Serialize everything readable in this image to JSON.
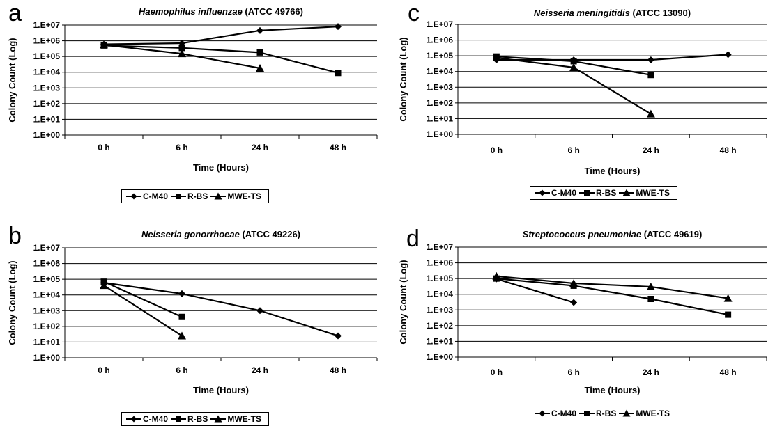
{
  "panels": [
    {
      "letter": "a"
    },
    {
      "letter": "b"
    },
    {
      "letter": "c"
    },
    {
      "letter": "d"
    }
  ],
  "chart_data": [
    {
      "type": "line",
      "title_italic": "Haemophilus influenzae",
      "title_rest": " (ATCC 49766)",
      "xlabel": "Time (Hours)",
      "ylabel": "Colony Count (Log)",
      "categories": [
        "0 h",
        "6 h",
        "24 h",
        "48 h"
      ],
      "y_scale": "log",
      "ylim": [
        1,
        10000000
      ],
      "yticks": [
        "1.E+00",
        "1.E+01",
        "1.E+02",
        "1.E+03",
        "1.E+04",
        "1.E+05",
        "1.E+06",
        "1.E+07"
      ],
      "grid": true,
      "legend_position": "bottom",
      "series": [
        {
          "name": "C-M40",
          "marker": "diamond",
          "values": [
            600000,
            700000,
            4500000,
            8000000
          ]
        },
        {
          "name": "R-BS",
          "marker": "square",
          "values": [
            500000,
            350000,
            180000,
            9000
          ]
        },
        {
          "name": "MWE-TS",
          "marker": "triangle",
          "values": [
            550000,
            150000,
            18000,
            null
          ]
        }
      ]
    },
    {
      "type": "line",
      "title_italic": "Neisseria gonorrhoeae",
      "title_rest": " (ATCC 49226)",
      "xlabel": "Time (Hours)",
      "ylabel": "Colony Count (Log)",
      "categories": [
        "0 h",
        "6 h",
        "24 h",
        "48 h"
      ],
      "y_scale": "log",
      "ylim": [
        1,
        10000000
      ],
      "yticks": [
        "1.E+00",
        "1.E+01",
        "1.E+02",
        "1.E+03",
        "1.E+04",
        "1.E+05",
        "1.E+06",
        "1.E+07"
      ],
      "grid": true,
      "legend_position": "bottom",
      "series": [
        {
          "name": "C-M40",
          "marker": "diamond",
          "values": [
            60000,
            12000,
            1000,
            25
          ]
        },
        {
          "name": "R-BS",
          "marker": "square",
          "values": [
            70000,
            400,
            null,
            null
          ]
        },
        {
          "name": "MWE-TS",
          "marker": "triangle",
          "values": [
            40000,
            25,
            null,
            null
          ]
        }
      ]
    },
    {
      "type": "line",
      "title_italic": "Neisseria meningitidis",
      "title_rest": " (ATCC 13090)",
      "xlabel": "Time (Hours)",
      "ylabel": "Colony Count (Log)",
      "categories": [
        "0 h",
        "6 h",
        "24 h",
        "48 h"
      ],
      "y_scale": "log",
      "ylim": [
        1,
        10000000
      ],
      "yticks": [
        "1.E+00",
        "1.E+01",
        "1.E+02",
        "1.E+03",
        "1.E+04",
        "1.E+05",
        "1.E+06",
        "1.E+07"
      ],
      "grid": true,
      "legend_position": "bottom",
      "series": [
        {
          "name": "C-M40",
          "marker": "diamond",
          "values": [
            55000,
            55000,
            55000,
            120000
          ]
        },
        {
          "name": "R-BS",
          "marker": "square",
          "values": [
            90000,
            45000,
            6000,
            null
          ]
        },
        {
          "name": "MWE-TS",
          "marker": "triangle",
          "values": [
            75000,
            18000,
            20,
            null
          ]
        }
      ]
    },
    {
      "type": "line",
      "title_italic": "Streptococcus pneumoniae",
      "title_rest": " (ATCC 49619)",
      "xlabel": "Time (Hours)",
      "ylabel": "Colony Count (Log)",
      "categories": [
        "0 h",
        "6 h",
        "24 h",
        "48 h"
      ],
      "y_scale": "log",
      "ylim": [
        1,
        10000000
      ],
      "yticks": [
        "1.E+00",
        "1.E+01",
        "1.E+02",
        "1.E+03",
        "1.E+04",
        "1.E+05",
        "1.E+06",
        "1.E+07"
      ],
      "grid": true,
      "legend_position": "bottom",
      "series": [
        {
          "name": "C-M40",
          "marker": "diamond",
          "values": [
            95000,
            3000,
            null,
            null
          ]
        },
        {
          "name": "R-BS",
          "marker": "square",
          "values": [
            100000,
            35000,
            5000,
            500
          ]
        },
        {
          "name": "MWE-TS",
          "marker": "triangle",
          "values": [
            140000,
            50000,
            30000,
            5500
          ]
        }
      ]
    }
  ]
}
